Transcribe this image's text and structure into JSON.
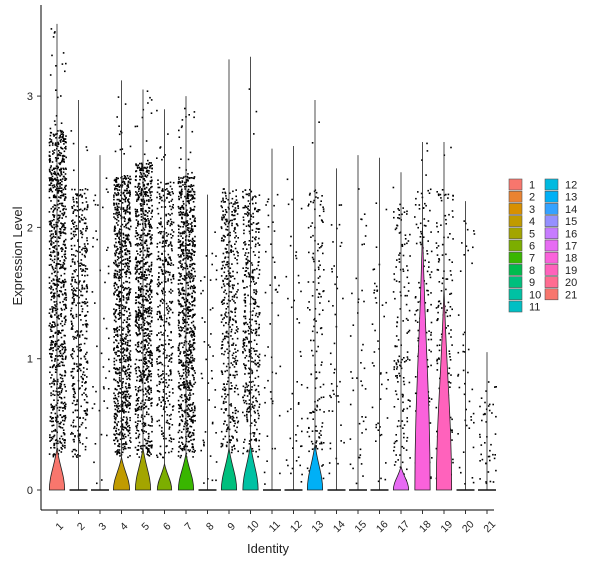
{
  "chart_data": {
    "type": "violin",
    "title": "",
    "xlabel": "Identity",
    "ylabel": "Expression Level",
    "ylim": [
      -0.2,
      3.7
    ],
    "yticks": [
      0,
      1,
      2,
      3
    ],
    "grid": false,
    "legend_position": "right",
    "categories": [
      "1",
      "2",
      "3",
      "4",
      "5",
      "6",
      "7",
      "8",
      "9",
      "10",
      "11",
      "12",
      "13",
      "14",
      "15",
      "16",
      "17",
      "18",
      "19",
      "20",
      "21"
    ],
    "series": [
      {
        "name": "1",
        "color": "#F8766D",
        "max": 3.55,
        "violin_height": 0.32,
        "violin_width": 0.85,
        "point_density": "very high",
        "point_top": 2.75
      },
      {
        "name": "2",
        "color": "#EA8331",
        "max": 2.97,
        "violin_height": 0.0,
        "violin_width": 0.0,
        "point_density": "high",
        "point_top": 2.3
      },
      {
        "name": "3",
        "color": "#D89000",
        "max": 2.55,
        "violin_height": 0.0,
        "violin_width": 0.0,
        "point_density": "low",
        "point_top": 2.4
      },
      {
        "name": "4",
        "color": "#C09B00",
        "max": 3.12,
        "violin_height": 0.25,
        "violin_width": 0.9,
        "point_density": "very high",
        "point_top": 2.4
      },
      {
        "name": "5",
        "color": "#A3A500",
        "max": 3.05,
        "violin_height": 0.32,
        "violin_width": 0.85,
        "point_density": "very high",
        "point_top": 2.5
      },
      {
        "name": "6",
        "color": "#7CAE00",
        "max": 2.9,
        "violin_height": 0.2,
        "violin_width": 0.8,
        "point_density": "high",
        "point_top": 2.35
      },
      {
        "name": "7",
        "color": "#39B600",
        "max": 3.0,
        "violin_height": 0.28,
        "violin_width": 0.85,
        "point_density": "very high",
        "point_top": 2.4
      },
      {
        "name": "8",
        "color": "#00BB4E",
        "max": 2.25,
        "violin_height": 0.0,
        "violin_width": 0.0,
        "point_density": "low",
        "point_top": 2.0
      },
      {
        "name": "9",
        "color": "#00BF7D",
        "max": 3.28,
        "violin_height": 0.32,
        "violin_width": 0.85,
        "point_density": "high",
        "point_top": 2.3
      },
      {
        "name": "10",
        "color": "#00C1A3",
        "max": 3.3,
        "violin_height": 0.35,
        "violin_width": 0.85,
        "point_density": "high",
        "point_top": 2.3
      },
      {
        "name": "11",
        "color": "#00BFC4",
        "max": 2.6,
        "violin_height": 0.0,
        "violin_width": 0.0,
        "point_density": "low",
        "point_top": 2.3
      },
      {
        "name": "12",
        "color": "#00BAE0",
        "max": 2.62,
        "violin_height": 0.0,
        "violin_width": 0.0,
        "point_density": "low",
        "point_top": 2.3
      },
      {
        "name": "13",
        "color": "#00B0F6",
        "max": 2.97,
        "violin_height": 0.35,
        "violin_width": 0.85,
        "point_density": "medium",
        "point_top": 2.3
      },
      {
        "name": "14",
        "color": "#35A2FF",
        "max": 2.45,
        "violin_height": 0.0,
        "violin_width": 0.0,
        "point_density": "low",
        "point_top": 2.2
      },
      {
        "name": "15",
        "color": "#9590FF",
        "max": 2.55,
        "violin_height": 0.0,
        "violin_width": 0.0,
        "point_density": "low",
        "point_top": 2.2
      },
      {
        "name": "16",
        "color": "#C77CFF",
        "max": 2.53,
        "violin_height": 0.0,
        "violin_width": 0.0,
        "point_density": "low",
        "point_top": 2.2
      },
      {
        "name": "17",
        "color": "#E76BF3",
        "max": 2.42,
        "violin_height": 0.18,
        "violin_width": 0.85,
        "point_density": "medium",
        "point_top": 2.2
      },
      {
        "name": "18",
        "color": "#FA62DB",
        "max": 2.65,
        "violin_height": 2.0,
        "violin_width": 0.85,
        "point_density": "medium",
        "point_top": 2.3
      },
      {
        "name": "19",
        "color": "#FF62BC",
        "max": 2.65,
        "violin_height": 1.55,
        "violin_width": 0.85,
        "point_density": "medium",
        "point_top": 2.3
      },
      {
        "name": "20",
        "color": "#FF6C91",
        "max": 2.2,
        "violin_height": 0.0,
        "violin_width": 0.0,
        "point_density": "low",
        "point_top": 2.1
      },
      {
        "name": "21",
        "color": "#F8766D",
        "max": 1.05,
        "violin_height": 0.0,
        "violin_width": 0.0,
        "point_density": "low",
        "point_top": 0.8
      }
    ]
  }
}
